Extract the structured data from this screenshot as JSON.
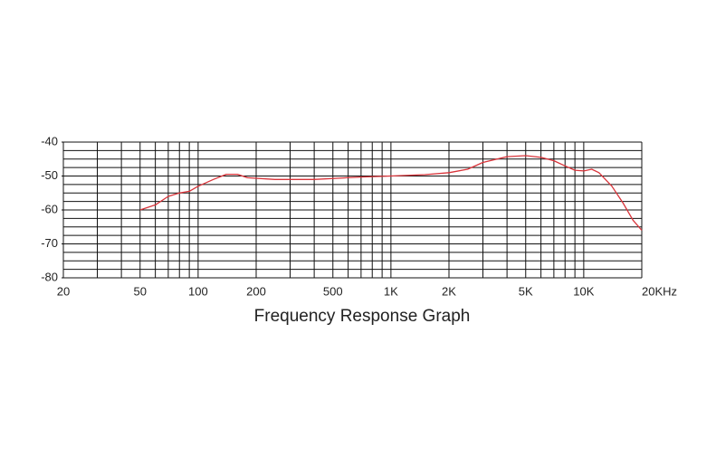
{
  "chart_data": {
    "type": "line",
    "title": "Frequency Response Graph",
    "x": [
      50,
      60,
      70,
      80,
      90,
      100,
      120,
      140,
      160,
      180,
      250,
      400,
      700,
      1000,
      1500,
      2000,
      2500,
      3000,
      4000,
      5000,
      6000,
      7000,
      8000,
      9000,
      10000,
      11000,
      12000,
      14000,
      16000,
      18000,
      20000
    ],
    "series": [
      {
        "color": "#d9343a",
        "values": [
          -60,
          -58.5,
          -56,
          -55,
          -54.5,
          -53,
          -51,
          -49.5,
          -49.5,
          -50.5,
          -51,
          -51,
          -50.3,
          -50,
          -49.6,
          -49,
          -48,
          -46,
          -44.3,
          -44,
          -44.5,
          -45.5,
          -47,
          -48.3,
          -48.5,
          -48,
          -49,
          -53,
          -58,
          -63,
          -66
        ]
      }
    ],
    "xscale": "log",
    "xlim": [
      20,
      20000
    ],
    "xticks": [
      20,
      50,
      100,
      200,
      500,
      {
        "value": 1000,
        "label": "1K"
      },
      {
        "value": 2000,
        "label": "2K"
      },
      {
        "value": 5000,
        "label": "5K"
      },
      {
        "value": 10000,
        "label": "10K"
      },
      {
        "value": 20000,
        "label": "20KHz"
      }
    ],
    "x_minor_ticks": [
      30,
      40,
      60,
      70,
      80,
      90,
      300,
      400,
      600,
      700,
      800,
      900,
      3000,
      4000,
      6000,
      7000,
      8000,
      9000
    ],
    "ylim": [
      -80,
      -40
    ],
    "yticks": [
      -40,
      -50,
      -60,
      -70,
      -80
    ],
    "y_minor_ticks": [
      -42.5,
      -45,
      -47.5,
      -52.5,
      -55,
      -57.5,
      -62.5,
      -65,
      -67.5,
      -72.5,
      -75,
      -77.5
    ],
    "grid": true
  }
}
